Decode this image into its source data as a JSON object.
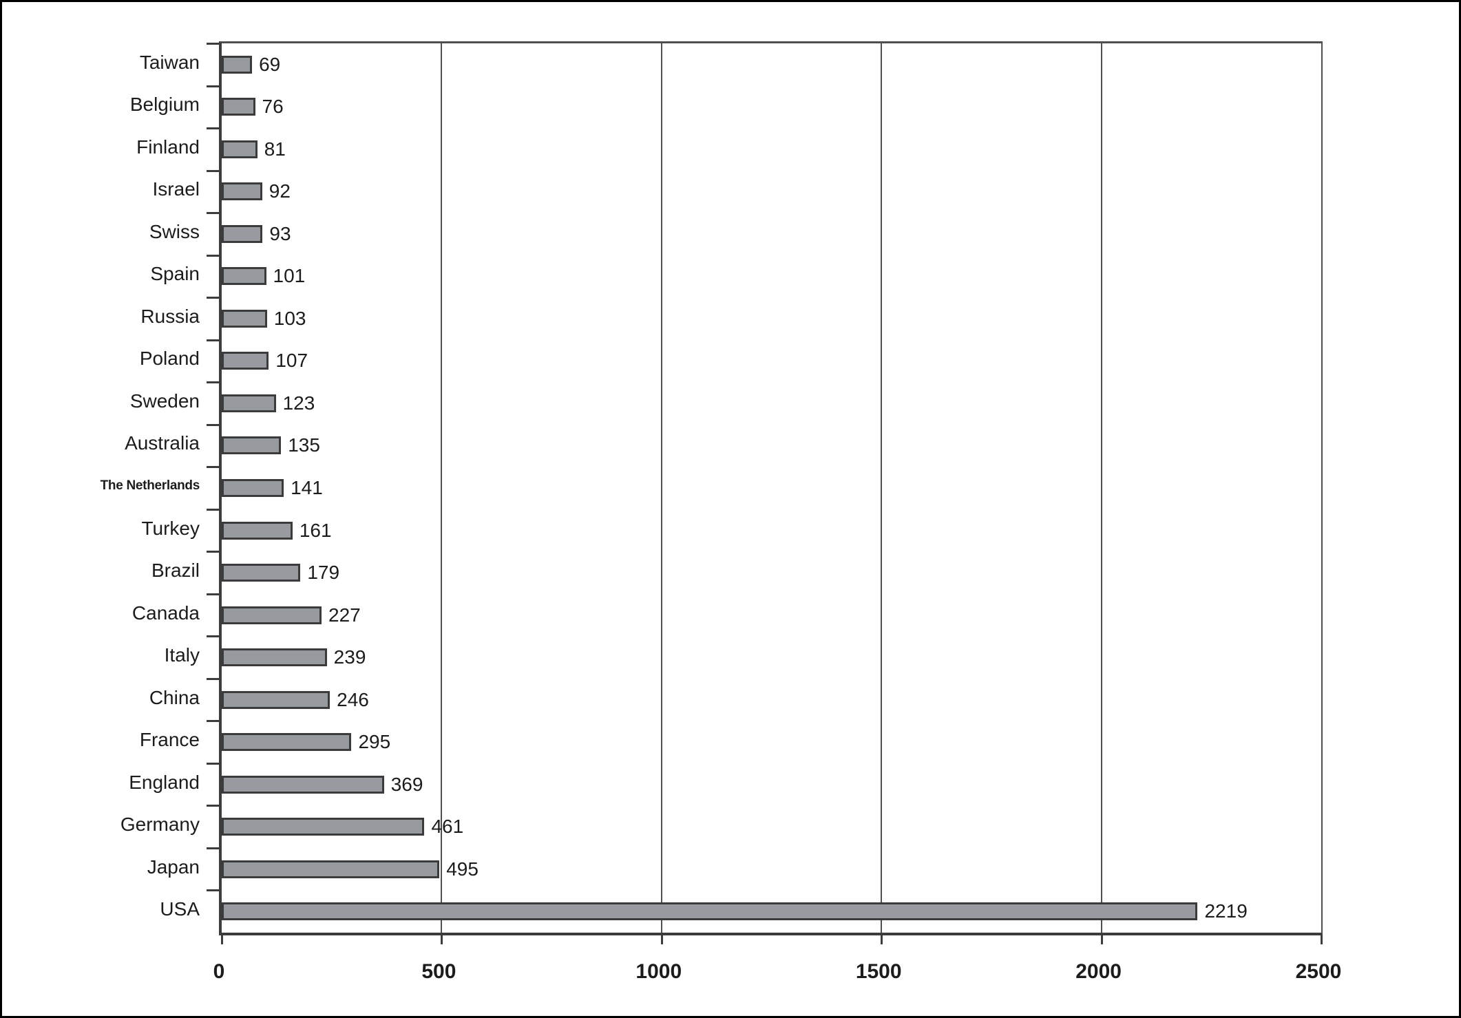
{
  "chart_data": {
    "type": "bar",
    "orientation": "horizontal",
    "title": "",
    "xlabel": "",
    "ylabel": "",
    "categories": [
      "Taiwan",
      "Belgium",
      "Finland",
      "Israel",
      "Swiss",
      "Spain",
      "Russia",
      "Poland",
      "Sweden",
      "Australia",
      "The Netherlands",
      "Turkey",
      "Brazil",
      "Canada",
      "Italy",
      "China",
      "France",
      "England",
      "Germany",
      "Japan",
      "USA"
    ],
    "values": [
      69,
      76,
      81,
      92,
      93,
      101,
      103,
      107,
      123,
      135,
      141,
      161,
      179,
      227,
      239,
      246,
      295,
      369,
      461,
      495,
      2219
    ],
    "value_labels_position": "right-of-bar",
    "xlim": [
      0,
      2500
    ],
    "x_ticks": [
      0,
      500,
      1000,
      1500,
      2000,
      2500
    ],
    "x_tick_labels": [
      "0",
      "500",
      "1000",
      "1500",
      "2000",
      "2500"
    ],
    "gridlines": "vertical-at-x-ticks",
    "legend": "none",
    "colors": {
      "background": "#ffffff",
      "frame_border": "#000000",
      "bar_fill": "#979a9e",
      "bar_border": "#3b3b3b",
      "axis": "#3c3c3c",
      "gridline": "#4f4f4f",
      "text": "#1c1c1c"
    }
  }
}
